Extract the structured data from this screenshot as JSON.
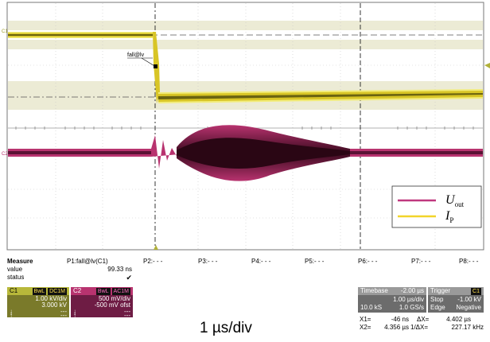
{
  "channels": {
    "c1_marker": "C1",
    "c2_marker": "C2",
    "trigger_marker_label": "fall@lv"
  },
  "legend": {
    "items": [
      {
        "symbol": "U",
        "sub": "out",
        "color": "#c0387f"
      },
      {
        "symbol": "I",
        "sub": "P",
        "color": "#f2d52a"
      }
    ]
  },
  "measure": {
    "title": "Measure",
    "rows": [
      {
        "label": "value",
        "value": "99.33 ns"
      },
      {
        "label": "status",
        "value": "✔"
      }
    ],
    "params": [
      {
        "name": "P1:fall@lv(C1)"
      },
      {
        "name": "P2:- - -"
      },
      {
        "name": "P3:- - -"
      },
      {
        "name": "P4:- - -"
      },
      {
        "name": "P5:- - -"
      },
      {
        "name": "P6:- - -"
      },
      {
        "name": "P7:- - -"
      },
      {
        "name": "P8:- - -"
      }
    ]
  },
  "c1_panel": {
    "label": "C1",
    "tag1": "BwL",
    "tag2": "DC1M",
    "scale": "1.00 kV/div",
    "offset": "3.000 kV",
    "row3_left": "↓",
    "row3_right": "---",
    "row4_left": "↑",
    "row4_right": "---",
    "color": "#c8c83c"
  },
  "c2_panel": {
    "label": "C2",
    "tag1": "BwL",
    "tag2": "AC1M",
    "scale": "500 mV/div",
    "offset": "-500 mV ofst",
    "row3_left": "↓",
    "row3_right": "---",
    "row4_left": "↑",
    "row4_right": "---",
    "color": "#b8336f"
  },
  "timebase": {
    "label": "Timebase",
    "delay": "-2.00 µs",
    "per_div": "1.00 µs/div",
    "samples": "10.0 kS",
    "rate": "1.0 GS/s"
  },
  "trigger": {
    "label": "Trigger",
    "badge": "C1",
    "mode": "Stop",
    "level": "-1.00 kV",
    "type": "Edge",
    "slope": "Negative"
  },
  "cursors": {
    "x1": "X1=",
    "x1_val": "-46 ns",
    "dx": "ΔX=",
    "dx_val": "4.402 µs",
    "x2": "X2=",
    "x2_val": "4.356 µs",
    "inv_dx": "1/ΔX=",
    "inv_dx_val": "227.17 kHz"
  },
  "caption": "1 µs/div"
}
